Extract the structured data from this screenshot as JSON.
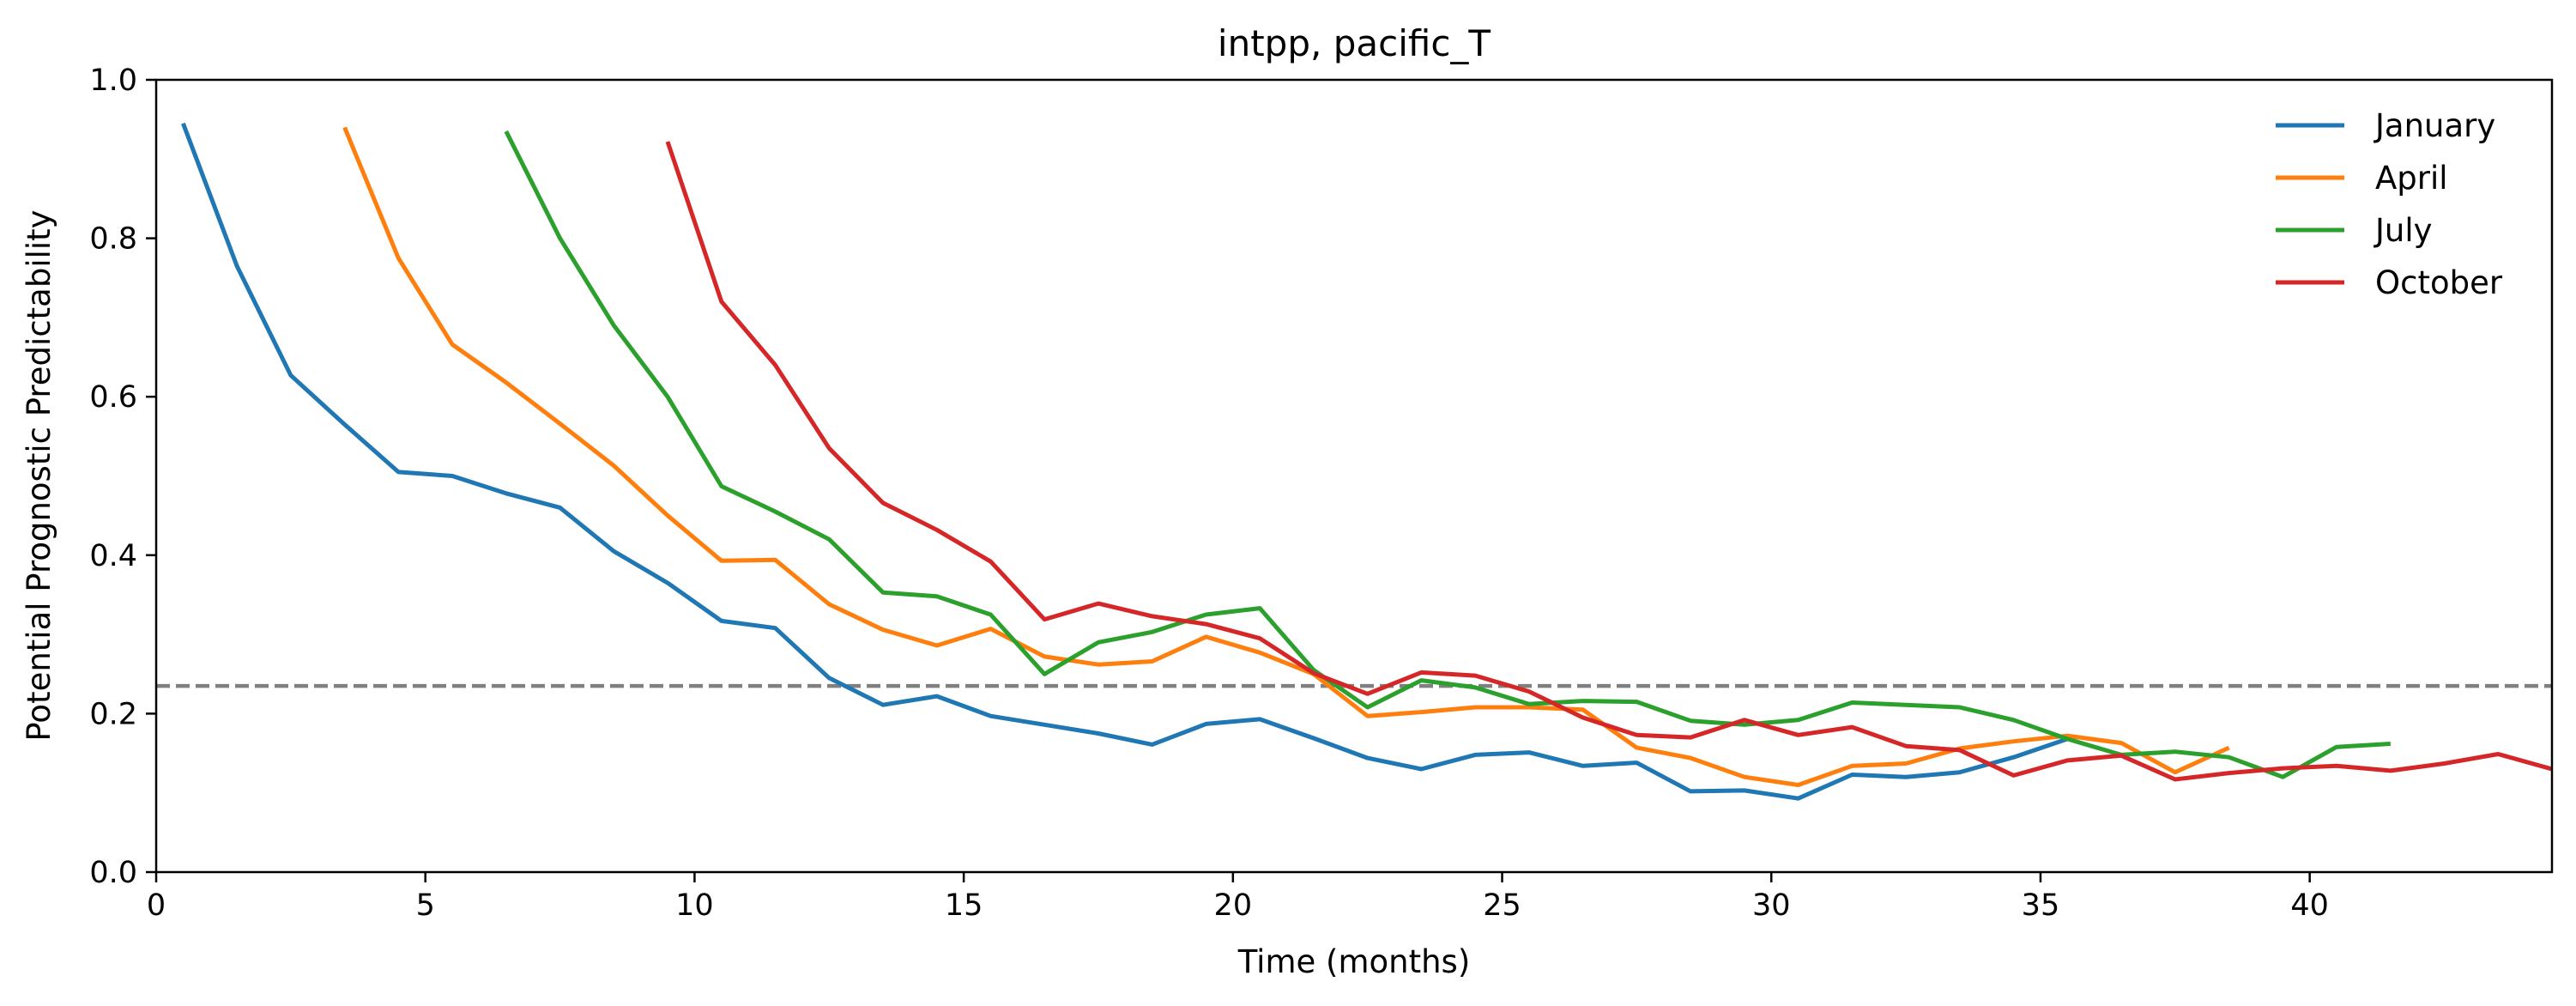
{
  "chart_data": {
    "type": "line",
    "title": "intpp, pacific_T",
    "xlabel": "Time (months)",
    "ylabel": "Potential Prognostic Predictability",
    "xlim": [
      0,
      44.5
    ],
    "ylim": [
      0,
      1.0
    ],
    "xticks": [
      0,
      5,
      10,
      15,
      20,
      25,
      30,
      35,
      40
    ],
    "yticks": [
      0.0,
      0.2,
      0.4,
      0.6,
      0.8,
      1.0
    ],
    "ytick_labels": [
      "0.0",
      "0.2",
      "0.4",
      "0.6",
      "0.8",
      "1.0"
    ],
    "grid": false,
    "legend_position": "top-right",
    "threshold": {
      "y": 0.235,
      "style": "dashed",
      "color": "#808080"
    },
    "series": [
      {
        "name": "January",
        "color": "#1f77b4",
        "x": [
          0.5,
          1.5,
          2.5,
          3.5,
          4.5,
          5.5,
          6.5,
          7.5,
          8.5,
          9.5,
          10.5,
          11.5,
          12.5,
          13.5,
          14.5,
          15.5,
          16.5,
          17.5,
          18.5,
          19.5,
          20.5,
          21.5,
          22.5,
          23.5,
          24.5,
          25.5,
          26.5,
          27.5,
          28.5,
          29.5,
          30.5,
          31.5,
          32.5,
          33.5,
          34.5,
          35.5
        ],
        "y": [
          0.945,
          0.765,
          0.627,
          0.565,
          0.505,
          0.5,
          0.478,
          0.46,
          0.405,
          0.365,
          0.317,
          0.308,
          0.245,
          0.211,
          0.222,
          0.197,
          0.186,
          0.175,
          0.161,
          0.187,
          0.193,
          0.169,
          0.144,
          0.13,
          0.148,
          0.151,
          0.134,
          0.138,
          0.102,
          0.103,
          0.093,
          0.123,
          0.12,
          0.126,
          0.145,
          0.168
        ]
      },
      {
        "name": "April",
        "color": "#ff7f0e",
        "x": [
          3.5,
          4.5,
          5.5,
          6.5,
          7.5,
          8.5,
          9.5,
          10.5,
          11.5,
          12.5,
          13.5,
          14.5,
          15.5,
          16.5,
          17.5,
          18.5,
          19.5,
          20.5,
          21.5,
          22.5,
          23.5,
          24.5,
          25.5,
          26.5,
          27.5,
          28.5,
          29.5,
          30.5,
          31.5,
          32.5,
          33.5,
          34.5,
          35.5,
          36.5,
          37.5,
          38.5
        ],
        "y": [
          0.94,
          0.775,
          0.666,
          0.618,
          0.566,
          0.513,
          0.45,
          0.393,
          0.394,
          0.338,
          0.306,
          0.286,
          0.307,
          0.272,
          0.262,
          0.266,
          0.297,
          0.277,
          0.25,
          0.197,
          0.202,
          0.208,
          0.208,
          0.205,
          0.157,
          0.144,
          0.12,
          0.11,
          0.134,
          0.137,
          0.156,
          0.165,
          0.172,
          0.163,
          0.126,
          0.157
        ]
      },
      {
        "name": "July",
        "color": "#2ca02c",
        "x": [
          6.5,
          7.5,
          8.5,
          9.5,
          10.5,
          11.5,
          12.5,
          13.5,
          14.5,
          15.5,
          16.5,
          17.5,
          18.5,
          19.5,
          20.5,
          21.5,
          22.5,
          23.5,
          24.5,
          25.5,
          26.5,
          27.5,
          28.5,
          29.5,
          30.5,
          31.5,
          32.5,
          33.5,
          34.5,
          35.5,
          36.5,
          37.5,
          38.5,
          39.5,
          40.5,
          41.5
        ],
        "y": [
          0.935,
          0.8,
          0.69,
          0.6,
          0.487,
          0.455,
          0.42,
          0.353,
          0.348,
          0.325,
          0.25,
          0.29,
          0.303,
          0.325,
          0.333,
          0.255,
          0.208,
          0.242,
          0.233,
          0.212,
          0.216,
          0.215,
          0.191,
          0.186,
          0.192,
          0.214,
          0.211,
          0.208,
          0.192,
          0.168,
          0.148,
          0.152,
          0.145,
          0.12,
          0.158,
          0.162
        ]
      },
      {
        "name": "October",
        "color": "#d62728",
        "x": [
          9.5,
          10.5,
          11.5,
          12.5,
          13.5,
          14.5,
          15.5,
          16.5,
          17.5,
          18.5,
          19.5,
          20.5,
          21.5,
          22.5,
          23.5,
          24.5,
          25.5,
          26.5,
          27.5,
          28.5,
          29.5,
          30.5,
          31.5,
          32.5,
          33.5,
          34.5,
          35.5,
          36.5,
          37.5,
          38.5,
          39.5,
          40.5,
          41.5,
          42.5,
          43.5,
          44.5
        ],
        "y": [
          0.922,
          0.72,
          0.64,
          0.535,
          0.466,
          0.432,
          0.392,
          0.319,
          0.339,
          0.323,
          0.313,
          0.295,
          0.251,
          0.225,
          0.252,
          0.248,
          0.228,
          0.195,
          0.173,
          0.17,
          0.192,
          0.173,
          0.183,
          0.159,
          0.154,
          0.122,
          0.141,
          0.147,
          0.117,
          0.125,
          0.131,
          0.134,
          0.128,
          0.137,
          0.149,
          0.13
        ]
      }
    ]
  }
}
